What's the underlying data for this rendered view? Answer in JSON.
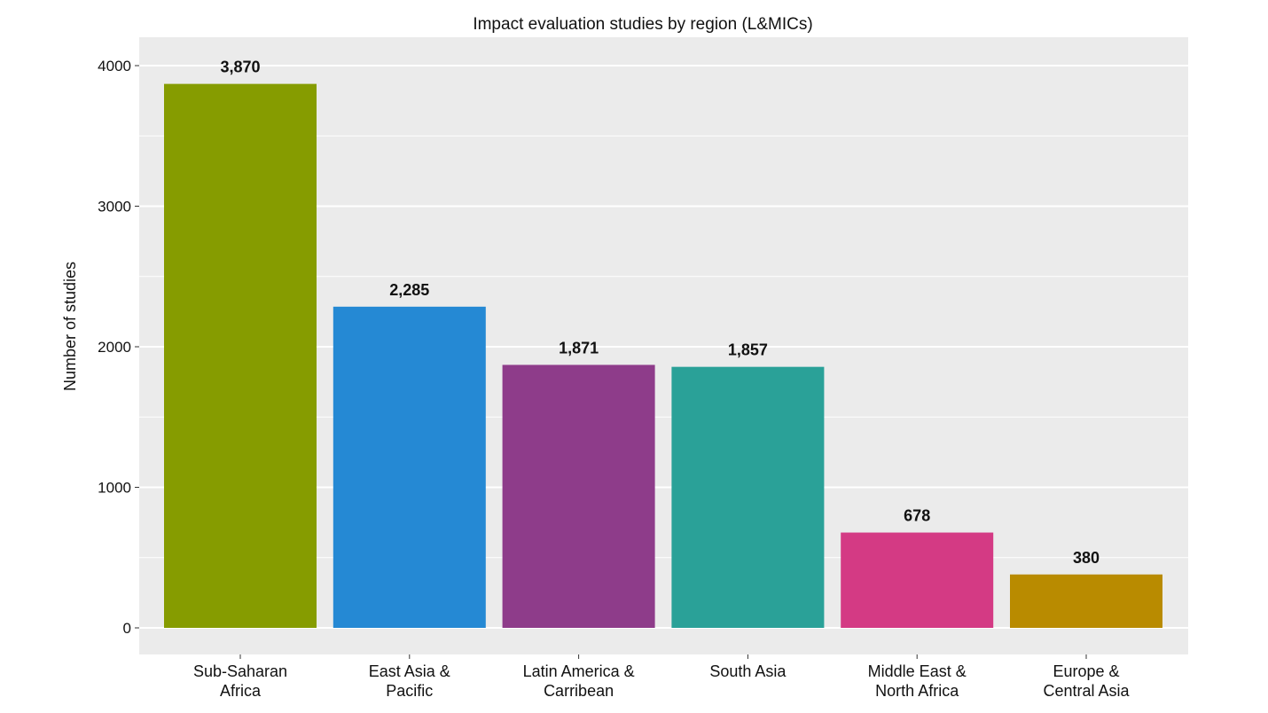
{
  "chart_data": {
    "type": "bar",
    "title": "Impact evaluation studies by region (L&MICs)",
    "xlabel": "",
    "ylabel": "Number of studies",
    "ylim": [
      0,
      4300
    ],
    "yticks": [
      0,
      1000,
      2000,
      3000,
      4000
    ],
    "grid": true,
    "legend": "none",
    "categories": [
      [
        "Sub-Saharan",
        "Africa"
      ],
      [
        "East Asia &",
        "Pacific"
      ],
      [
        "Latin America &",
        "Carribean"
      ],
      [
        "South Asia"
      ],
      [
        "Middle East &",
        "North Africa"
      ],
      [
        "Europe &",
        "Central Asia"
      ]
    ],
    "values": [
      3870,
      2285,
      1871,
      1857,
      678,
      380
    ],
    "data_labels": [
      "3,870",
      "2,285",
      "1,871",
      "1,857",
      "678",
      "380"
    ],
    "colors": [
      "#869c00",
      "#2589d4",
      "#8e3c8a",
      "#2aa198",
      "#d43a84",
      "#b98b00"
    ],
    "panel_background": "#ebebeb",
    "gridline_color": "#ffffff"
  }
}
